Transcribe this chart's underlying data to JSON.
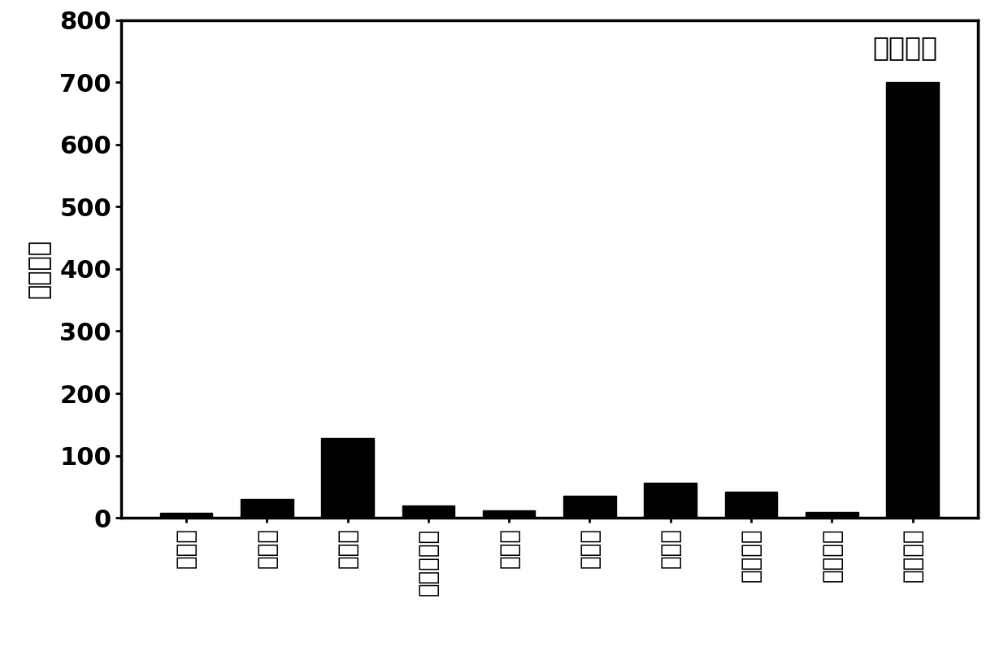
{
  "categories": [
    "镁离子",
    "钙离子",
    "铁离子",
    "磷酸根离子",
    "氯离子",
    "甘氨酸",
    "缬氨酸",
    "谷胱甘肽",
    "抗坏血酸",
    "过氧化氢"
  ],
  "values": [
    8,
    30,
    128,
    20,
    12,
    35,
    57,
    42,
    10,
    700
  ],
  "bar_color": "#000000",
  "ylabel": "相对强度",
  "annotation": "过氧化氢",
  "ylim": [
    0,
    800
  ],
  "yticks": [
    0,
    100,
    200,
    300,
    400,
    500,
    600,
    700,
    800
  ],
  "background_color": "#ffffff",
  "label_fontsize": 22,
  "tick_fontsize": 22,
  "xticklabel_fontsize": 20,
  "annotation_fontsize": 24,
  "bar_width": 0.65
}
